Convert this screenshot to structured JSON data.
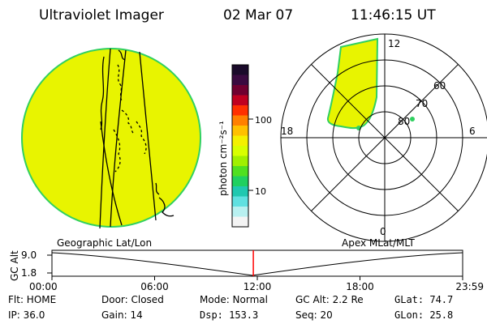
{
  "header": {
    "title": "Ultraviolet Imager",
    "date": "02 Mar 07",
    "time": "11:46:15 UT"
  },
  "panels": {
    "left_label": "Geographic Lat/Lon",
    "right_label": "Apex MLat/MLT"
  },
  "polar": {
    "mlt_labels": {
      "top": "12",
      "right": "6",
      "bottom": "0",
      "left": "18"
    },
    "lat_labels": [
      "60",
      "70",
      "80"
    ]
  },
  "colorbar": {
    "unit": "photon cm⁻²s⁻¹",
    "ticks": [
      "100",
      "10"
    ],
    "colors": [
      "#1a0a2a",
      "#3a0a40",
      "#700030",
      "#c00020",
      "#ff3000",
      "#ff8000",
      "#ffc000",
      "#f4f000",
      "#d8ff00",
      "#a0f000",
      "#50e020",
      "#20d060",
      "#20c8b0",
      "#60e0e0",
      "#b8f0f0",
      "#f4f4f4"
    ]
  },
  "timeline": {
    "y_axis_label": "GC Alt",
    "y_ticks": [
      "9.0",
      "1.8"
    ],
    "time_ticks": [
      "00:00",
      "06:00",
      "12:00",
      "18:00",
      "23:59"
    ],
    "current_fraction": 0.4904,
    "marker_color": "#ff0000"
  },
  "status": {
    "row1": {
      "filter": "Flt: HOME",
      "door": "Door: Closed",
      "mode": "Mode: Normal",
      "gc_alt": "GC Alt: 2.2 Re",
      "glat": "GLat:  74.7"
    },
    "row2": {
      "ip": "IP: 36.0",
      "gain": "Gain: 14",
      "dsp": "Dsp:    153.3",
      "seq": "Seq: 20",
      "glon": "GLon:  25.8"
    }
  },
  "image_fill_color": "#e8f400",
  "image_edge_color": "#30d060"
}
